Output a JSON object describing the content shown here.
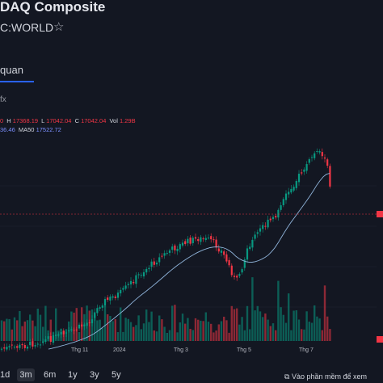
{
  "header": {
    "title": "DAQ Composite",
    "symbol": "C:WORLD",
    "star_icon": "star-icon"
  },
  "tabs": {
    "overview": "quan"
  },
  "legend": {
    "fx": "fx",
    "o_value": "0",
    "h_key": "H",
    "h_value": "17368.19",
    "l_key": "L",
    "l_value": "17042.04",
    "c_key": "C",
    "c_value": "17042.04",
    "vol_key": "Vol",
    "vol_value": "1.29B",
    "ma_value": "36.46",
    "ma50_key": "MA50",
    "ma50_value": "17522.72"
  },
  "x_labels": [
    "Thg 11",
    "2024",
    "Thg 3",
    "Thg 5",
    "Thg 7"
  ],
  "range_buttons": [
    "1d",
    "3m",
    "6m",
    "1y",
    "3y",
    "5y"
  ],
  "selected_range": "3m",
  "external_link": "Vào phần mềm để xem",
  "colors": {
    "up": "#089981",
    "down": "#f23645",
    "ma": "#8fb3d9",
    "accent": "#2962ff"
  }
}
